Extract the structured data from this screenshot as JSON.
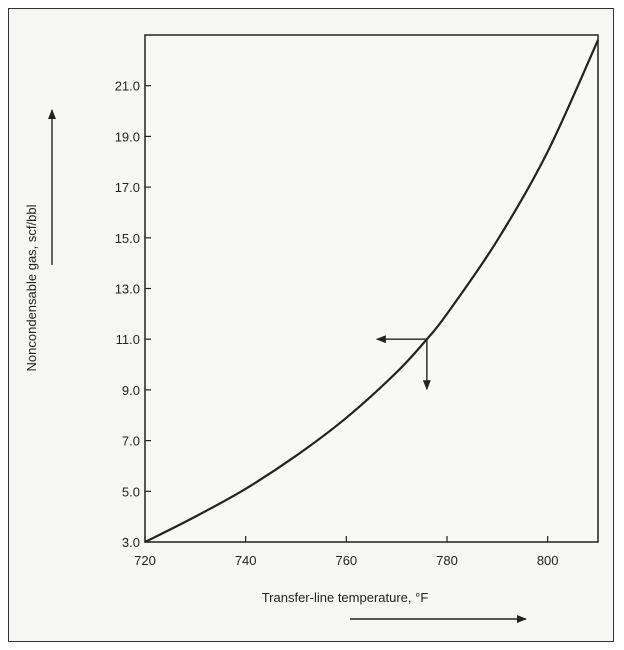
{
  "chart_data": {
    "type": "line",
    "xlabel": "Transfer-line temperature, °F",
    "ylabel": "Noncondensable gas, scf/bbl",
    "xlim": [
      720,
      810
    ],
    "ylim": [
      3.0,
      23.0
    ],
    "x_ticks": [
      "720",
      "740",
      "760",
      "780",
      "800"
    ],
    "y_ticks": [
      "3.0",
      "5.0",
      "7.0",
      "9.0",
      "11.0",
      "13.0",
      "15.0",
      "17.0",
      "19.0",
      "21.0"
    ],
    "grid": false,
    "series": [
      {
        "x": [
          720,
          730,
          740,
          750,
          760,
          770,
          776,
          780,
          790,
          800,
          810
        ],
        "y": [
          3.0,
          4.0,
          5.1,
          6.4,
          7.9,
          9.7,
          11.0,
          12.0,
          14.9,
          18.4,
          22.8
        ]
      }
    ],
    "annotations": [
      {
        "type": "reading-guide",
        "x": 776,
        "y": 11.0,
        "arrows": [
          "left",
          "down"
        ]
      }
    ],
    "direction_arrows": [
      "y-increasing",
      "x-increasing"
    ],
    "colors": {
      "line": "#222222",
      "frame": "#333333",
      "background": "#f6f6f4"
    }
  }
}
